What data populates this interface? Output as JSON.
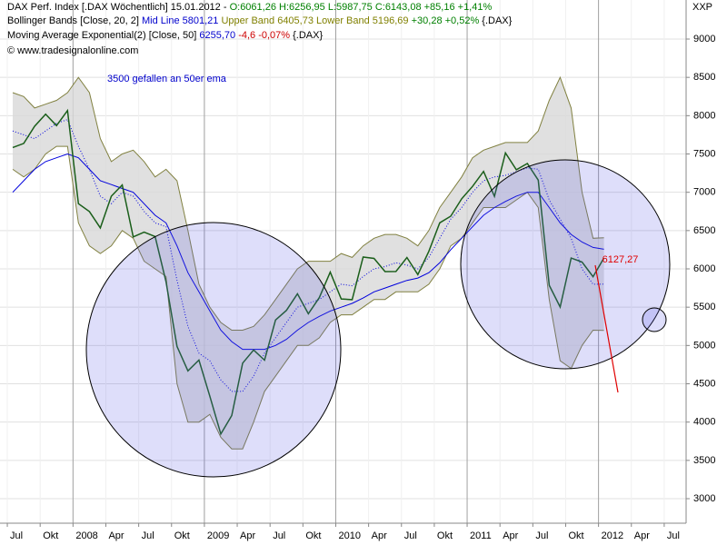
{
  "chart_data": {
    "type": "price",
    "legend": [
      [
        "DAX Perf. Index [.DAX  Wöchentlich] 15.01.2012 - ",
        "O:6061,26 H:6256,95 L:5987,75 C:6143,08 +85,16 +1,41%"
      ],
      [
        "Bollinger Bands [Close, 20, 2] ",
        "Mid Line 5801,21 ",
        "Upper Band 6405,73 Lower Band 5196,69 ",
        "+30,28 +0,52% ",
        "{.DAX}"
      ],
      [
        "Moving Average Exponential(2) [Close, 50] ",
        "6255,70 ",
        "-4,6 -0,07% ",
        "{.DAX}"
      ]
    ],
    "legend_colors": [
      [
        "#000000",
        "#008000"
      ],
      [
        "#000000",
        "#0000cc",
        "#808000",
        "#008000",
        "#000000"
      ],
      [
        "#000000",
        "#0000cc",
        "#cc0000",
        "#000000"
      ]
    ],
    "copyright": "© www.tradesignalonline.com",
    "symbol": "XXP",
    "annotation": "3500 gefallen an 50er ema",
    "last_price_label": "6127,27",
    "x": [
      "2007-07",
      "2007-08",
      "2007-09",
      "2007-10",
      "2007-11",
      "2007-12",
      "2008-01",
      "2008-02",
      "2008-03",
      "2008-04",
      "2008-05",
      "2008-06",
      "2008-07",
      "2008-08",
      "2008-09",
      "2008-10",
      "2008-11",
      "2008-12",
      "2009-01",
      "2009-02",
      "2009-03",
      "2009-04",
      "2009-05",
      "2009-06",
      "2009-07",
      "2009-08",
      "2009-09",
      "2009-10",
      "2009-11",
      "2009-12",
      "2010-01",
      "2010-02",
      "2010-03",
      "2010-04",
      "2010-05",
      "2010-06",
      "2010-07",
      "2010-08",
      "2010-09",
      "2010-10",
      "2010-11",
      "2010-12",
      "2011-01",
      "2011-02",
      "2011-03",
      "2011-04",
      "2011-05",
      "2011-06",
      "2011-07",
      "2011-08",
      "2011-09",
      "2011-10",
      "2011-11",
      "2011-12",
      "2012-01"
    ],
    "close": [
      7584,
      7638,
      7862,
      8019,
      7870,
      8067,
      6851,
      6748,
      6535,
      6949,
      7096,
      6418,
      6479,
      6422,
      5831,
      4988,
      4669,
      4810,
      4338,
      3844,
      4085,
      4769,
      4941,
      4809,
      5332,
      5458,
      5675,
      5414,
      5625,
      5957,
      5608,
      5598,
      6154,
      6136,
      5964,
      5966,
      6148,
      5925,
      6229,
      6601,
      6688,
      6914,
      7077,
      7272,
      6946,
      7514,
      7294,
      7376,
      7159,
      5785,
      5502,
      6141,
      6089,
      5898,
      6143
    ],
    "close_color": "#1a5e1a",
    "upper": [
      8300,
      8250,
      8100,
      8150,
      8200,
      8300,
      8500,
      8300,
      7700,
      7400,
      7500,
      7550,
      7400,
      7200,
      7300,
      7150,
      6500,
      5800,
      5500,
      5300,
      5200,
      5200,
      5250,
      5400,
      5600,
      5800,
      6000,
      6100,
      6100,
      6100,
      6200,
      6150,
      6300,
      6400,
      6450,
      6450,
      6400,
      6300,
      6500,
      6800,
      7000,
      7200,
      7450,
      7550,
      7600,
      7650,
      7650,
      7650,
      7800,
      8200,
      8500,
      8100,
      7000,
      6400,
      6406
    ],
    "lower": [
      7300,
      7200,
      7300,
      7500,
      7600,
      7600,
      6600,
      6300,
      6200,
      6300,
      6500,
      6400,
      6100,
      6000,
      5900,
      4500,
      4000,
      4000,
      4100,
      3800,
      3650,
      3650,
      4000,
      4400,
      4600,
      4800,
      5000,
      5000,
      5100,
      5300,
      5400,
      5400,
      5500,
      5600,
      5600,
      5700,
      5700,
      5700,
      5800,
      6000,
      6300,
      6400,
      6600,
      6800,
      6800,
      6800,
      6900,
      7000,
      6800,
      5600,
      4800,
      4700,
      5000,
      5200,
      5197
    ],
    "mid": [
      7800,
      7750,
      7700,
      7800,
      7900,
      7950,
      7600,
      7300,
      6950,
      6850,
      7000,
      6950,
      6750,
      6600,
      6550,
      5850,
      5250,
      4900,
      4800,
      4550,
      4400,
      4400,
      4600,
      4900,
      5100,
      5300,
      5500,
      5550,
      5600,
      5700,
      5800,
      5780,
      5900,
      6000,
      6030,
      6080,
      6050,
      6000,
      6150,
      6400,
      6650,
      6800,
      7000,
      7150,
      7200,
      7220,
      7270,
      7320,
      7300,
      6900,
      6650,
      6400,
      6000,
      5800,
      5801
    ],
    "ema": [
      7000,
      7150,
      7300,
      7400,
      7450,
      7500,
      7450,
      7300,
      7150,
      7100,
      7050,
      7000,
      6850,
      6700,
      6600,
      6300,
      5950,
      5700,
      5450,
      5200,
      5050,
      4950,
      4950,
      4950,
      5000,
      5080,
      5200,
      5300,
      5380,
      5450,
      5500,
      5550,
      5620,
      5700,
      5750,
      5800,
      5850,
      5880,
      5950,
      6080,
      6250,
      6400,
      6550,
      6700,
      6800,
      6880,
      6950,
      7000,
      7000,
      6800,
      6600,
      6450,
      6350,
      6280,
      6256
    ],
    "band_color": "#808040",
    "band_fill": "#d8d8d8",
    "line_color": "#0000dd",
    "xlim": [
      "2007-06",
      "2012-09"
    ],
    "xticks": [
      {
        "value": "2007-07",
        "label": "Jul"
      },
      {
        "value": "2007-10",
        "label": "Okt"
      },
      {
        "value": "2008-01",
        "label": "2008"
      },
      {
        "value": "2008-04",
        "label": "Apr"
      },
      {
        "value": "2008-07",
        "label": "Jul"
      },
      {
        "value": "2008-10",
        "label": "Okt"
      },
      {
        "value": "2009-01",
        "label": "2009"
      },
      {
        "value": "2009-04",
        "label": "Apr"
      },
      {
        "value": "2009-07",
        "label": "Jul"
      },
      {
        "value": "2009-10",
        "label": "Okt"
      },
      {
        "value": "2010-01",
        "label": "2010"
      },
      {
        "value": "2010-04",
        "label": "Apr"
      },
      {
        "value": "2010-07",
        "label": "Jul"
      },
      {
        "value": "2010-10",
        "label": "Okt"
      },
      {
        "value": "2011-01",
        "label": "2011"
      },
      {
        "value": "2011-04",
        "label": "Apr"
      },
      {
        "value": "2011-07",
        "label": "Jul"
      },
      {
        "value": "2011-10",
        "label": "Okt"
      },
      {
        "value": "2012-01",
        "label": "2012"
      },
      {
        "value": "2012-04",
        "label": "Apr"
      },
      {
        "value": "2012-07",
        "label": "Jul"
      }
    ],
    "ylim": [
      2680,
      9510
    ],
    "yticks": [
      3000,
      3500,
      4000,
      4500,
      5000,
      5500,
      6000,
      6500,
      7000,
      7500,
      8000,
      8500,
      9000
    ],
    "grid": true
  }
}
